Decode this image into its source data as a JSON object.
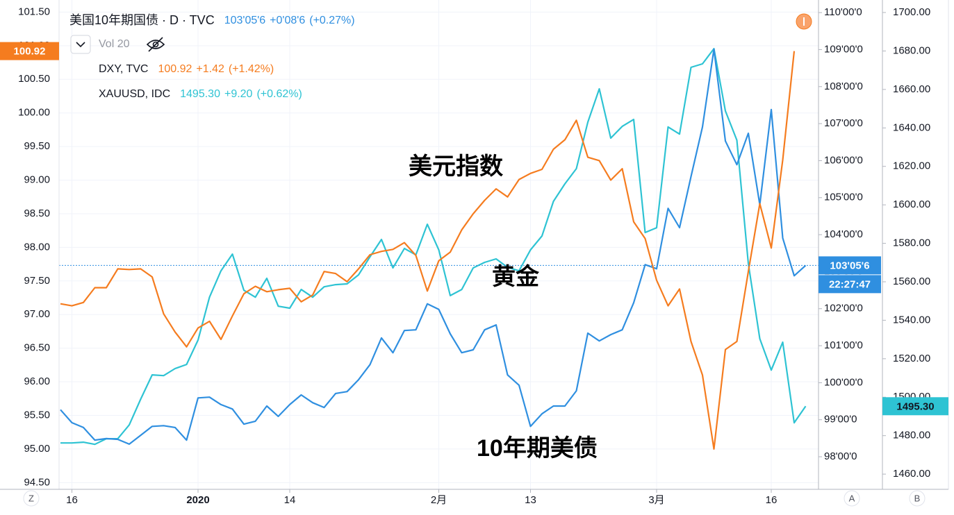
{
  "chart_data": {
    "type": "line",
    "categories": [
      null,
      "16",
      null,
      null,
      null,
      null,
      null,
      null,
      null,
      null,
      null,
      null,
      "2020",
      null,
      null,
      null,
      null,
      null,
      null,
      null,
      "14",
      null,
      null,
      null,
      null,
      null,
      null,
      null,
      null,
      null,
      null,
      null,
      null,
      "2月",
      null,
      null,
      null,
      null,
      null,
      null,
      null,
      "13",
      null,
      null,
      null,
      null,
      null,
      null,
      null,
      null,
      null,
      null,
      "3月",
      null,
      null,
      null,
      null,
      null,
      null,
      null,
      null,
      null,
      "16",
      null,
      null,
      null
    ],
    "series": [
      {
        "name": "DXY, TVC",
        "last_label": "100.92",
        "change": "+1.42",
        "change_pct": "(+1.42%)",
        "color": "#f57c1f",
        "axis": "y",
        "values": [
          97.16,
          97.13,
          97.18,
          97.4,
          97.4,
          97.68,
          97.67,
          97.68,
          97.56,
          97.01,
          96.74,
          96.52,
          96.8,
          96.9,
          96.63,
          96.98,
          97.31,
          97.42,
          97.34,
          97.37,
          97.39,
          97.19,
          97.29,
          97.64,
          97.61,
          97.49,
          97.68,
          97.89,
          97.94,
          97.97,
          98.07,
          97.88,
          97.35,
          97.8,
          97.93,
          98.26,
          98.5,
          98.7,
          98.87,
          98.75,
          99.01,
          99.1,
          99.16,
          99.46,
          99.6,
          99.89,
          99.34,
          99.29,
          99.0,
          99.17,
          98.38,
          98.13,
          97.51,
          97.13,
          97.38,
          96.6,
          96.1,
          95.0,
          96.48,
          96.6,
          97.64,
          98.65,
          97.99,
          99.3,
          100.92,
          null
        ]
      },
      {
        "name": "美国10年期国债 · D · TVC",
        "last_label": "103'05'6",
        "change": "+0'08'6",
        "change_pct": "(+0.27%)",
        "color": "#2f8fe0",
        "axis": "y2",
        "values": [
          99.27,
          98.92,
          98.79,
          98.45,
          98.49,
          98.47,
          98.34,
          98.58,
          98.82,
          98.84,
          98.79,
          98.45,
          99.59,
          99.61,
          99.41,
          99.29,
          98.88,
          98.96,
          99.37,
          99.09,
          99.41,
          99.67,
          99.46,
          99.33,
          99.71,
          99.76,
          100.08,
          100.49,
          101.21,
          100.81,
          101.41,
          101.43,
          102.13,
          101.98,
          101.32,
          100.81,
          100.89,
          101.43,
          101.56,
          100.21,
          99.93,
          98.82,
          99.16,
          99.37,
          99.37,
          99.78,
          101.34,
          101.13,
          101.3,
          101.43,
          102.16,
          103.19,
          103.08,
          104.71,
          104.19,
          105.57,
          106.91,
          109.01,
          106.53,
          105.89,
          106.74,
          104.81,
          107.38,
          103.91,
          102.89,
          103.17
        ]
      },
      {
        "name": "XAUUSD, IDC",
        "last_label": "1495.30",
        "change": "+9.20",
        "change_pct": "(+0.62%)",
        "color": "#2ec3d3",
        "axis": "y3",
        "values": [
          1476.2,
          1476.2,
          1476.6,
          1475.5,
          1478.4,
          1478.4,
          1485.6,
          1499.0,
          1511.6,
          1511.2,
          1514.9,
          1517.0,
          1529.7,
          1552.0,
          1565.7,
          1574.4,
          1555.6,
          1552.0,
          1561.8,
          1547.3,
          1546.3,
          1556.0,
          1552.0,
          1557.4,
          1558.5,
          1558.9,
          1563.6,
          1573.0,
          1582.0,
          1567.2,
          1577.3,
          1574.0,
          1589.9,
          1576.6,
          1552.8,
          1556.0,
          1567.2,
          1570.1,
          1571.9,
          1567.5,
          1565.7,
          1576.6,
          1583.8,
          1601.8,
          1610.9,
          1618.8,
          1643.0,
          1660.3,
          1634.7,
          1640.8,
          1644.4,
          1585.6,
          1588.1,
          1640.5,
          1636.8,
          1671.5,
          1673.3,
          1681.2,
          1648.8,
          1633.6,
          1569.4,
          1530.4,
          1514.1,
          1528.6,
          1486.7,
          1495.3
        ]
      }
    ],
    "ylim": [
      94.4,
      101.68
    ],
    "yticks": [
      {
        "value": 94.5,
        "label": "94.50"
      },
      {
        "value": 95,
        "label": "95.00"
      },
      {
        "value": 95.5,
        "label": "95.50"
      },
      {
        "value": 96,
        "label": "96.00"
      },
      {
        "value": 96.5,
        "label": "96.50"
      },
      {
        "value": 97,
        "label": "97.00"
      },
      {
        "value": 97.5,
        "label": "97.50"
      },
      {
        "value": 98,
        "label": "98.00"
      },
      {
        "value": 98.5,
        "label": "98.50"
      },
      {
        "value": 99,
        "label": "99.00"
      },
      {
        "value": 99.5,
        "label": "99.50"
      },
      {
        "value": 100,
        "label": "100.00"
      },
      {
        "value": 100.5,
        "label": "100.50"
      },
      {
        "value": 101,
        "label": "101.00"
      },
      {
        "value": 101.5,
        "label": "101.50"
      }
    ],
    "y2lim": [
      97.12,
      110.34
    ],
    "y2ticks": [
      {
        "value": 98,
        "label": "98'00'0"
      },
      {
        "value": 99,
        "label": "99'00'0"
      },
      {
        "value": 100,
        "label": "100'00'0"
      },
      {
        "value": 101,
        "label": "101'00'0"
      },
      {
        "value": 102,
        "label": "102'00'0"
      },
      {
        "value": 103,
        "label": "103'00'0"
      },
      {
        "value": 104,
        "label": "104'00'0"
      },
      {
        "value": 105,
        "label": "105'00'0"
      },
      {
        "value": 106,
        "label": "106'00'0"
      },
      {
        "value": 107,
        "label": "107'00'0"
      },
      {
        "value": 108,
        "label": "108'00'0"
      },
      {
        "value": 109,
        "label": "109'00'0"
      },
      {
        "value": 110,
        "label": "110'00'0"
      }
    ],
    "y3lim": [
      1452.1,
      1706.5
    ],
    "y3ticks": [
      {
        "value": 1460,
        "label": "1460.00"
      },
      {
        "value": 1480,
        "label": "1480.00"
      },
      {
        "value": 1500,
        "label": "1500.00"
      },
      {
        "value": 1520,
        "label": "1520.00"
      },
      {
        "value": 1540,
        "label": "1540.00"
      },
      {
        "value": 1560,
        "label": "1560.00"
      },
      {
        "value": 1580,
        "label": "1580.00"
      },
      {
        "value": 1600,
        "label": "1600.00"
      },
      {
        "value": 1620,
        "label": "1620.00"
      },
      {
        "value": 1640,
        "label": "1640.00"
      },
      {
        "value": 1660,
        "label": "1660.00"
      },
      {
        "value": 1680,
        "label": "1680.00"
      },
      {
        "value": 1700,
        "label": "1700.00"
      }
    ],
    "grid": true,
    "volume_label": "Vol 20",
    "countdown": "22:27:47",
    "annotations": [
      "美元指数",
      "黄金",
      "10年期美债"
    ],
    "scale_buttons": [
      "Z",
      "A",
      "B"
    ]
  }
}
